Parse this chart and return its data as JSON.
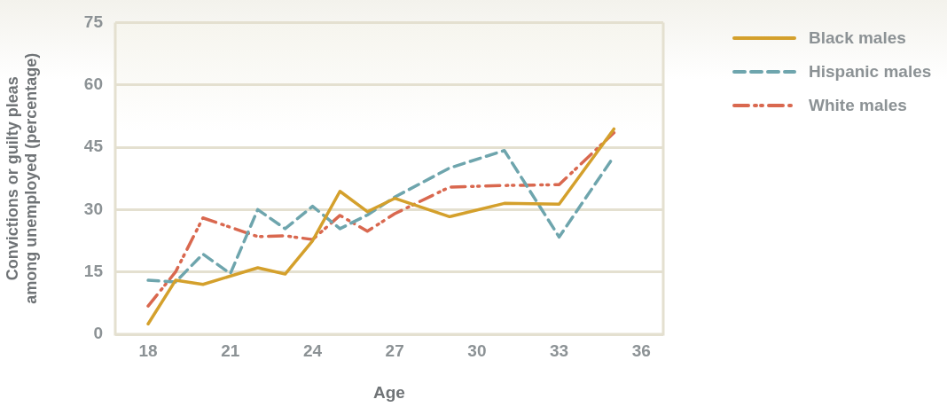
{
  "chart_data": {
    "type": "line",
    "xlabel": "Age",
    "ylabel": "Convictions or guilty pleas\namong unemployed (percentage)",
    "xlim": [
      16.8,
      36.8
    ],
    "xticks": [
      18,
      21,
      24,
      27,
      30,
      33,
      36
    ],
    "ylim": [
      0,
      75
    ],
    "yticks": [
      0,
      15,
      30,
      45,
      60,
      75
    ],
    "grid": "y",
    "legend": "top right",
    "marker": "none",
    "series": [
      {
        "name": "Black males",
        "color": "#d4a02c",
        "line_style": "solid",
        "x": [
          18,
          19,
          20,
          22,
          23,
          24,
          25,
          26,
          27,
          29,
          31,
          33,
          35
        ],
        "values": [
          2.5,
          13,
          12,
          16,
          14.5,
          22.5,
          34.4,
          29.5,
          32.7,
          28.3,
          31.5,
          31.3,
          49.4
        ]
      },
      {
        "name": "Hispanic males",
        "color": "#6ea5ad",
        "line_style": "dashed",
        "x": [
          18,
          19,
          20,
          21,
          22,
          23,
          24,
          25,
          26,
          27,
          29,
          31,
          33,
          35
        ],
        "values": [
          13,
          12.6,
          19.3,
          14.6,
          30,
          25.4,
          30.8,
          25.4,
          28.7,
          33,
          40,
          44.2,
          23.4,
          42.8
        ]
      },
      {
        "name": "White males",
        "color": "#d9684f",
        "line_style": "dotted",
        "x": [
          18,
          19,
          20,
          22,
          23,
          24,
          25,
          26,
          27,
          29,
          31,
          33,
          35
        ],
        "values": [
          6.8,
          15,
          28,
          23.5,
          23.7,
          22.8,
          28.6,
          24.8,
          29,
          35.4,
          35.8,
          36,
          48.5
        ]
      }
    ]
  }
}
